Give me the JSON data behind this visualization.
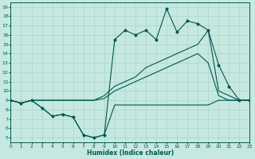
{
  "xlabel": "Humidex (Indice chaleur)",
  "bg_color": "#c5e8e0",
  "grid_color": "#a8d0c8",
  "line_color": "#005850",
  "xlim": [
    0,
    23
  ],
  "ylim": [
    4.5,
    19.5
  ],
  "xticks": [
    0,
    1,
    2,
    3,
    4,
    5,
    6,
    7,
    8,
    9,
    10,
    11,
    12,
    13,
    14,
    15,
    16,
    17,
    18,
    19,
    20,
    21,
    22,
    23
  ],
  "yticks": [
    5,
    6,
    7,
    8,
    9,
    10,
    11,
    12,
    13,
    14,
    15,
    16,
    17,
    18,
    19
  ],
  "line_zigzag_x": [
    0,
    1,
    2,
    3,
    4,
    5,
    6,
    7,
    8,
    9,
    10,
    11,
    12,
    13,
    14,
    15,
    16,
    17,
    18,
    19,
    20,
    21,
    22,
    23
  ],
  "line_zigzag_y": [
    9.0,
    8.7,
    9.0,
    8.2,
    7.3,
    7.5,
    7.2,
    5.3,
    5.0,
    5.3,
    15.5,
    16.5,
    16.0,
    16.5,
    15.5,
    18.8,
    16.3,
    17.5,
    17.2,
    16.5,
    12.8,
    10.5,
    9.0,
    9.0
  ],
  "line_upper_x": [
    0,
    1,
    2,
    3,
    4,
    5,
    6,
    7,
    8,
    9,
    10,
    11,
    12,
    13,
    14,
    15,
    16,
    17,
    18,
    19,
    20,
    21,
    22,
    23
  ],
  "line_upper_y": [
    9.0,
    8.7,
    9.0,
    9.0,
    9.0,
    9.0,
    9.0,
    9.0,
    9.0,
    9.5,
    10.5,
    11.0,
    11.5,
    12.5,
    13.0,
    13.5,
    14.0,
    14.5,
    15.0,
    16.5,
    10.0,
    9.5,
    9.0,
    9.0
  ],
  "line_mid_x": [
    0,
    1,
    2,
    3,
    4,
    5,
    6,
    7,
    8,
    9,
    10,
    11,
    12,
    13,
    14,
    15,
    16,
    17,
    18,
    19,
    20,
    21,
    22,
    23
  ],
  "line_mid_y": [
    9.0,
    8.7,
    9.0,
    9.0,
    9.0,
    9.0,
    9.0,
    9.0,
    9.0,
    9.2,
    10.0,
    10.5,
    11.0,
    11.5,
    12.0,
    12.5,
    13.0,
    13.5,
    14.0,
    13.0,
    9.5,
    9.0,
    9.0,
    9.0
  ],
  "line_bot_x": [
    0,
    1,
    2,
    3,
    4,
    5,
    6,
    7,
    8,
    9,
    10,
    11,
    12,
    13,
    14,
    15,
    16,
    17,
    18,
    19,
    20,
    21,
    22,
    23
  ],
  "line_bot_y": [
    9.0,
    8.7,
    9.0,
    8.2,
    7.3,
    7.5,
    7.2,
    5.3,
    5.0,
    5.3,
    8.5,
    8.5,
    8.5,
    8.5,
    8.5,
    8.5,
    8.5,
    8.5,
    8.5,
    8.5,
    9.0,
    9.0,
    9.0,
    9.0
  ]
}
